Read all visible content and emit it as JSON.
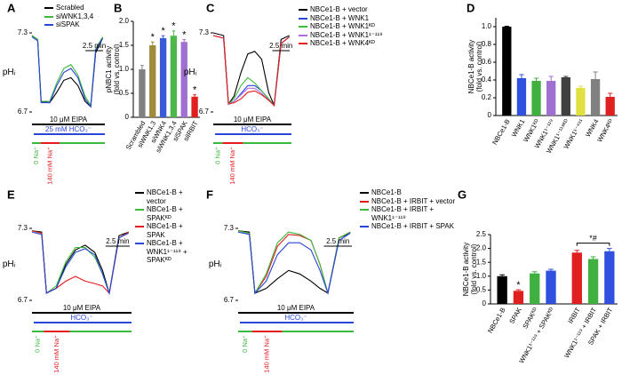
{
  "chart_data": [
    {
      "panel": "A",
      "type": "line",
      "ylabel": "pHᵢ",
      "x": [
        0,
        0.8,
        1.3,
        2.5,
        3.5,
        4.5,
        5.5,
        6.5,
        7.5,
        8.3,
        9,
        10
      ],
      "xlim": [
        0,
        10.3
      ],
      "ylim": [
        6.7,
        7.3
      ],
      "yticks": [
        7.3,
        6.7
      ],
      "series": [
        {
          "name": "Scrabled",
          "color": "#000000",
          "values": [
            7.28,
            7.25,
            6.78,
            6.77,
            6.85,
            6.94,
            6.96,
            6.9,
            6.78,
            6.74,
            7.15,
            7.26
          ]
        },
        {
          "name": "siWNK1,3,4",
          "color": "#3cb83c",
          "values": [
            7.28,
            7.25,
            6.78,
            6.78,
            6.92,
            7.03,
            7.06,
            6.98,
            6.82,
            6.75,
            7.18,
            7.27
          ]
        },
        {
          "name": "siSPAK",
          "color": "#2846d8",
          "values": [
            7.27,
            7.24,
            6.77,
            6.77,
            6.9,
            7.0,
            7.03,
            6.96,
            6.8,
            6.74,
            7.17,
            7.26
          ]
        }
      ],
      "scale_bar": {
        "value": 2.5,
        "label": "2.5 min"
      },
      "eipa": "10 μM EIPA",
      "hco3": "25 mM HCO₃⁻",
      "na0": "0 Na⁺",
      "na140": "140 mM Na⁺"
    },
    {
      "panel": "B",
      "type": "bar",
      "ylabel": [
        "pNBC1 activity",
        "(fold vs. control)"
      ],
      "categories": [
        "Scrambled",
        "siWNK1,3",
        "siWNK4",
        "siWNK1,3,4",
        "siSPAK",
        "siIRBIT"
      ],
      "values": [
        1.0,
        1.5,
        1.65,
        1.7,
        1.57,
        0.43
      ],
      "errors": [
        0.08,
        0.07,
        0.05,
        0.1,
        0.05,
        0.04
      ],
      "colors": [
        "#808080",
        "#a08a3c",
        "#3a5bd9",
        "#4cb84c",
        "#a070d0",
        "#e02020"
      ],
      "ylim": [
        0,
        2.0
      ],
      "yticks": [
        0,
        0.5,
        {
          "value": 1.0,
          "label": "1.0"
        },
        1.5,
        {
          "value": 2.0,
          "label": "2.0"
        }
      ],
      "annotations": [
        {
          "category": 1,
          "text": "*"
        },
        {
          "category": 2,
          "text": "*"
        },
        {
          "category": 3,
          "text": "*"
        },
        {
          "category": 4,
          "text": "*"
        },
        {
          "category": 5,
          "text": "*"
        }
      ]
    },
    {
      "panel": "C",
      "type": "line",
      "ylabel": "pHᵢ",
      "x": [
        0,
        1.5,
        2.2,
        3,
        4,
        5,
        6,
        7,
        8,
        8.8,
        9.8,
        11
      ],
      "xlim": [
        0,
        11.3
      ],
      "ylim": [
        6.7,
        7.3
      ],
      "yticks": [
        7.3,
        6.7
      ],
      "series": [
        {
          "name": "NBCe1-B + vector",
          "color": "#000000",
          "values": [
            7.3,
            7.28,
            6.76,
            6.82,
            7.0,
            7.14,
            7.16,
            7.1,
            6.85,
            6.75,
            7.25,
            7.28
          ]
        },
        {
          "name": "NBCe1-B + WNK1",
          "color": "#2846d8",
          "values": [
            7.28,
            7.26,
            6.76,
            6.78,
            6.84,
            6.9,
            6.9,
            6.86,
            6.8,
            6.75,
            7.22,
            7.27
          ]
        },
        {
          "name": "NBCe1-B + WNK1ᴷᴰ",
          "color": "#3cb83c",
          "values": [
            7.28,
            7.26,
            6.76,
            6.8,
            6.9,
            6.96,
            6.92,
            6.86,
            6.8,
            6.75,
            7.22,
            7.27
          ]
        },
        {
          "name": "NBCe1-B + WNK1¹⁻¹¹⁹",
          "color": "#b070e0",
          "values": [
            7.28,
            7.26,
            6.76,
            6.78,
            6.83,
            6.88,
            6.88,
            6.84,
            6.79,
            6.75,
            7.22,
            7.27
          ]
        },
        {
          "name": "NBCe1-B + WNK4ᴷᴰ",
          "color": "#e41a1c",
          "values": [
            7.28,
            7.26,
            6.76,
            6.77,
            6.8,
            6.85,
            6.86,
            6.83,
            6.79,
            6.75,
            7.22,
            7.27
          ]
        }
      ],
      "scale_bar": {
        "value": 2.5,
        "label": "2.5 min"
      },
      "eipa": "10 μM EIPA",
      "hco3": "HCO₃⁻",
      "na0": "0 Na⁺",
      "na140": "140 mM Na⁺"
    },
    {
      "panel": "D",
      "type": "bar",
      "ylabel": [
        "NBCe1-B activity",
        "(fold vs. control)"
      ],
      "categories": [
        "NBCe1-B",
        "WNK1",
        "WNK1ᴷᴰ",
        "WNK1¹⁻¹¹⁹",
        "WNK1¹⁻¹¹⁹ᴷᴰ",
        "WNK1¹⁻⁴⁹¹",
        "WNK4",
        "WNK4ᴷᴰ"
      ],
      "values": [
        1.0,
        0.42,
        0.39,
        0.39,
        0.43,
        0.31,
        0.41,
        0.21
      ],
      "errors": [
        0.005,
        0.04,
        0.03,
        0.05,
        0.01,
        0.02,
        0.08,
        0.04
      ],
      "colors": [
        "#000000",
        "#3050e0",
        "#40b040",
        "#a070d0",
        "#404040",
        "#e0e040",
        "#808080",
        "#e02020"
      ],
      "ylim": [
        0,
        1.1
      ],
      "yticks": [
        0,
        0.2,
        0.4,
        0.6,
        0.8,
        {
          "value": 1.0,
          "label": "1.0"
        }
      ]
    },
    {
      "panel": "E",
      "type": "line",
      "ylabel": "pHᵢ",
      "x": [
        0,
        1,
        1.5,
        2.5,
        3.5,
        4.5,
        5.5,
        6.5,
        7.3,
        8,
        9,
        10
      ],
      "xlim": [
        0,
        10.3
      ],
      "ylim": [
        6.7,
        7.3
      ],
      "yticks": [
        7.3,
        6.7
      ],
      "series": [
        {
          "name": "NBCe1-B + vector",
          "color": "#000000",
          "values": [
            7.28,
            7.27,
            6.76,
            6.8,
            7.0,
            7.12,
            7.16,
            7.1,
            6.95,
            6.76,
            7.24,
            7.27
          ]
        },
        {
          "name": "NBCe1-B + SPAKᴷᴰ",
          "color": "#3cb83c",
          "values": [
            7.28,
            7.26,
            6.76,
            6.82,
            7.02,
            7.14,
            7.14,
            7.06,
            6.92,
            6.76,
            7.22,
            7.27
          ]
        },
        {
          "name": "NBCe1-B + SPAK",
          "color": "#e41a1c",
          "values": [
            7.28,
            7.26,
            6.76,
            6.8,
            6.86,
            6.9,
            6.86,
            6.84,
            6.82,
            6.76,
            7.22,
            7.27
          ]
        },
        {
          "name": "NBCe1-B + WNK1¹⁻¹¹⁹ + SPAKᴷᴰ",
          "color": "#2846d8",
          "values": [
            7.27,
            7.25,
            6.76,
            6.8,
            6.98,
            7.1,
            7.13,
            7.08,
            6.92,
            6.76,
            7.22,
            7.26
          ]
        }
      ],
      "scale_bar": {
        "value": 2.5,
        "label": "2.5 min"
      },
      "eipa": "10 μM EIPA",
      "hco3": "HCO₃⁻",
      "na0": "0 Na⁺",
      "na140": "140 mM Na⁺"
    },
    {
      "panel": "F",
      "type": "line",
      "ylabel": "pHᵢ",
      "x": [
        0,
        1,
        1.5,
        2.5,
        3.5,
        4.5,
        5.5,
        6.5,
        7.3,
        8,
        9,
        10
      ],
      "xlim": [
        0,
        10.3
      ],
      "ylim": [
        6.7,
        7.3
      ],
      "yticks": [
        7.3,
        6.7
      ],
      "series": [
        {
          "name": "NBCe1-B",
          "color": "#000000",
          "values": [
            7.28,
            7.27,
            6.76,
            6.8,
            6.88,
            6.95,
            6.92,
            6.86,
            6.8,
            6.76,
            7.22,
            7.26
          ]
        },
        {
          "name": "NBCe1-B + IRBIT + vector",
          "color": "#e41a1c",
          "values": [
            7.28,
            7.26,
            6.76,
            6.9,
            7.15,
            7.25,
            7.24,
            7.2,
            7.0,
            6.76,
            7.22,
            7.27
          ]
        },
        {
          "name": "NBCe1-B + IRBIT + WNK1¹⁻¹¹⁹",
          "color": "#3cb83c",
          "values": [
            7.28,
            7.26,
            6.76,
            6.92,
            7.18,
            7.27,
            7.25,
            7.2,
            7.0,
            6.76,
            7.22,
            7.27
          ]
        },
        {
          "name": "NBCe1-B + IRBIT + SPAK",
          "color": "#2846d8",
          "values": [
            7.27,
            7.25,
            6.76,
            6.86,
            7.08,
            7.18,
            7.18,
            7.12,
            6.95,
            6.76,
            7.2,
            7.26
          ]
        }
      ],
      "scale_bar": {
        "value": 2.5,
        "label": "2.5 min"
      },
      "eipa": "10 μM EIPA",
      "hco3": "HCO₃⁻",
      "na0": "0 Na⁺",
      "na140": "140 mM Na⁺"
    },
    {
      "panel": "G",
      "type": "bar",
      "ylabel": [
        "NBCe1-B activity",
        "(fold vs. control)"
      ],
      "categories": [
        "NBCe1-B",
        "SPAK",
        "SPAKᴷᴰ",
        "WNK1¹⁻¹¹⁹ + SPAKᴷᴰ",
        "IRBIT",
        "WNK1¹⁻¹¹⁹ + IRBIT",
        "SPAK + IRBIT"
      ],
      "values": [
        1.0,
        0.47,
        1.1,
        1.2,
        1.85,
        1.62,
        1.9
      ],
      "errors": [
        0.05,
        0.04,
        0.06,
        0.05,
        0.08,
        0.08,
        0.1
      ],
      "colors": [
        "#000000",
        "#e02020",
        "#40b040",
        "#3050e0",
        "#e02020",
        "#40b040",
        "#3050e0"
      ],
      "ylim": [
        0,
        2.5
      ],
      "yticks": [
        0,
        0.5,
        {
          "value": 1.0,
          "label": "1.0"
        },
        1.5,
        {
          "value": 2.0,
          "label": "2.0"
        },
        2.5
      ],
      "annotations": [
        {
          "category": 1,
          "text": "*"
        },
        {
          "categories": [
            4,
            6
          ],
          "text": "*#"
        }
      ]
    }
  ]
}
